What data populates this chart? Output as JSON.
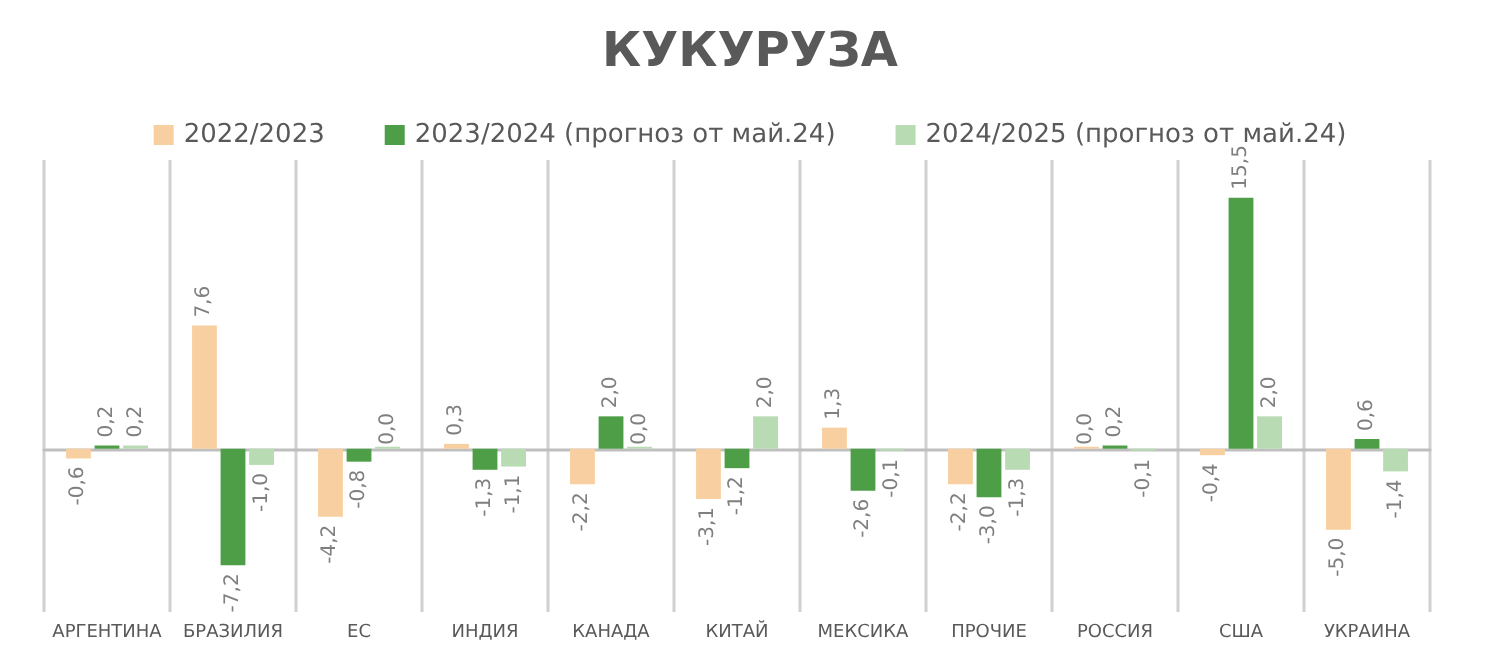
{
  "chart_data": {
    "type": "bar",
    "title": "КУКУРУЗА",
    "categories": [
      "АРГЕНТИНА",
      "БРАЗИЛИЯ",
      "ЕС",
      "ИНДИЯ",
      "КАНАДА",
      "КИТАЙ",
      "МЕКСИКА",
      "ПРОЧИЕ",
      "РОССИЯ",
      "США",
      "УКРАИНА"
    ],
    "series": [
      {
        "name": "2022/2023",
        "color": "#f8cfa0",
        "values": [
          -0.6,
          7.6,
          -4.2,
          0.3,
          -2.2,
          -3.1,
          1.3,
          -2.2,
          0.0,
          -0.4,
          -5.0
        ],
        "value_labels": [
          "-0,6",
          "7,6",
          "-4,2",
          "0,3",
          "-2,2",
          "-3,1",
          "1,3",
          "-2,2",
          "0,0",
          "-0,4",
          "-5,0"
        ]
      },
      {
        "name": "2023/2024 (прогноз от май.24)",
        "color": "#4e9e48",
        "values": [
          0.2,
          -7.2,
          -0.8,
          -1.3,
          2.0,
          -1.2,
          -2.6,
          -3.0,
          0.2,
          15.5,
          0.6
        ],
        "value_labels": [
          "0,2",
          "-7,2",
          "-0,8",
          "-1,3",
          "2,0",
          "-1,2",
          "-2,6",
          "-3,0",
          "0,2",
          "15,5",
          "0,6"
        ]
      },
      {
        "name": "2024/2025 (прогноз от май.24)",
        "color": "#b9dbb4",
        "values": [
          0.2,
          -1.0,
          0.0,
          -1.1,
          0.0,
          2.0,
          -0.1,
          -1.3,
          -0.1,
          2.0,
          -1.4
        ],
        "value_labels": [
          "0,2",
          "-1,0",
          "0,0",
          "-1,1",
          "0,0",
          "2,0",
          "-0,1",
          "-1,3",
          "-0,1",
          "2,0",
          "-1,4"
        ]
      }
    ],
    "grid": "x",
    "legend": "top"
  }
}
